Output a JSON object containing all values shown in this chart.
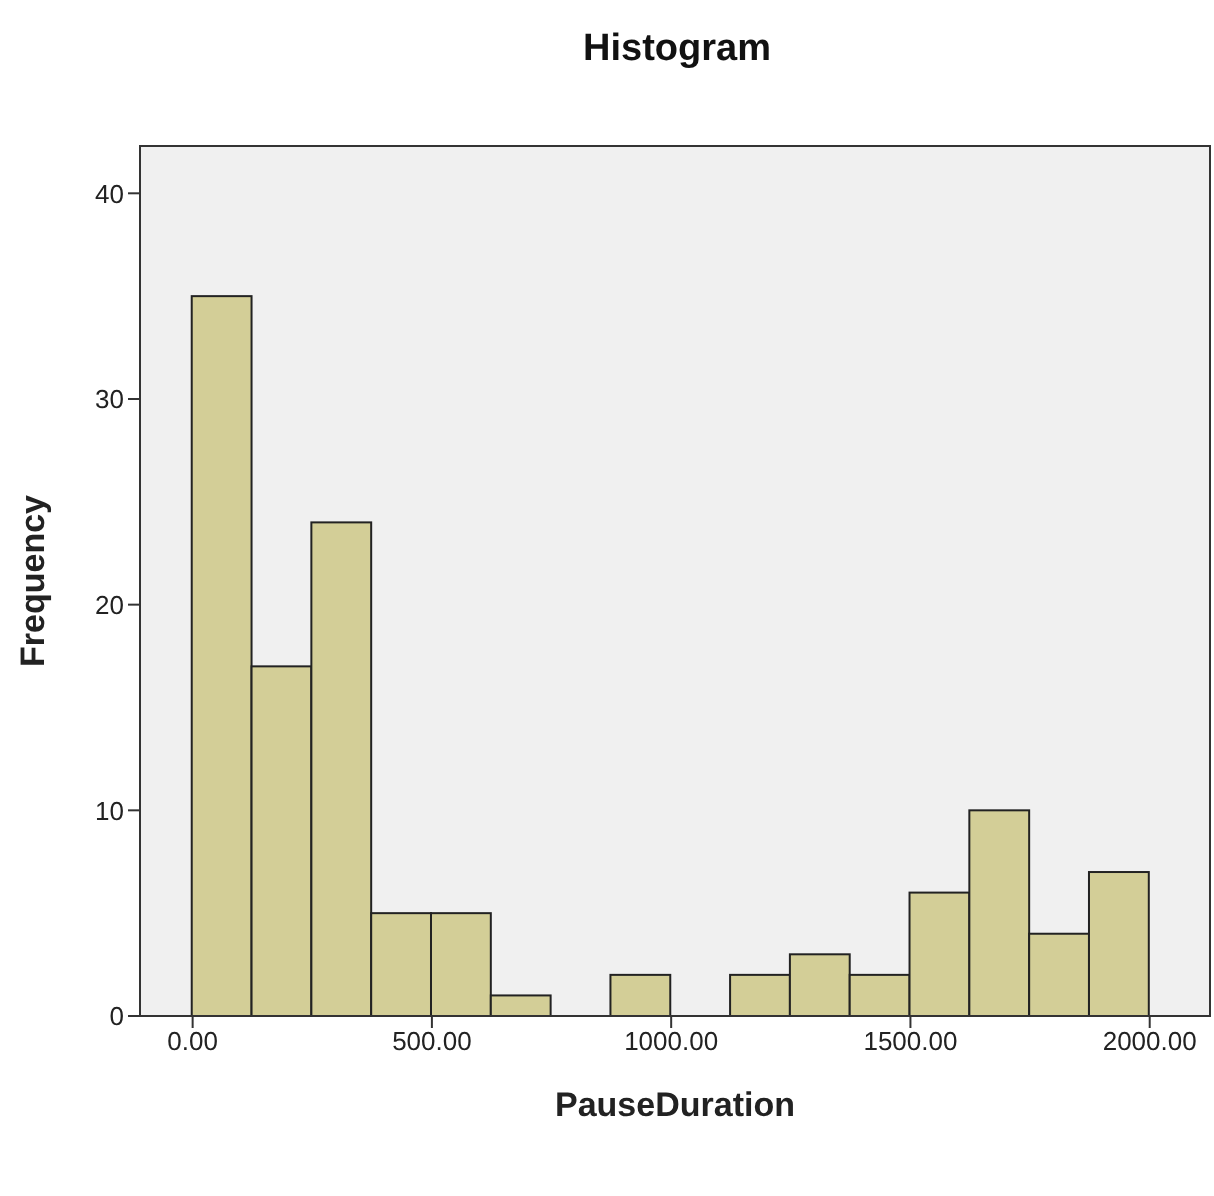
{
  "chart_data": {
    "type": "histogram",
    "title": "Histogram",
    "xlabel": "PauseDuration",
    "ylabel": "Frequency",
    "bins": [
      0,
      125,
      250,
      375,
      500,
      625,
      750,
      875,
      1000,
      1125,
      1250,
      1375,
      1500,
      1625,
      1750,
      1875,
      2000
    ],
    "values": [
      35,
      17,
      24,
      5,
      5,
      1,
      0,
      2,
      0,
      2,
      3,
      2,
      6,
      10,
      4,
      7
    ],
    "color": "#d3ce97",
    "xlim": [
      -110,
      2126
    ],
    "ylim": [
      0,
      42.3
    ],
    "xticks": [
      {
        "value": 0,
        "label": "0.00"
      },
      {
        "value": 500,
        "label": "500.00"
      },
      {
        "value": 1000,
        "label": "1000.00"
      },
      {
        "value": 1500,
        "label": "1500.00"
      },
      {
        "value": 2000,
        "label": "2000.00"
      }
    ],
    "yticks": [
      0,
      10,
      20,
      30,
      40
    ]
  }
}
